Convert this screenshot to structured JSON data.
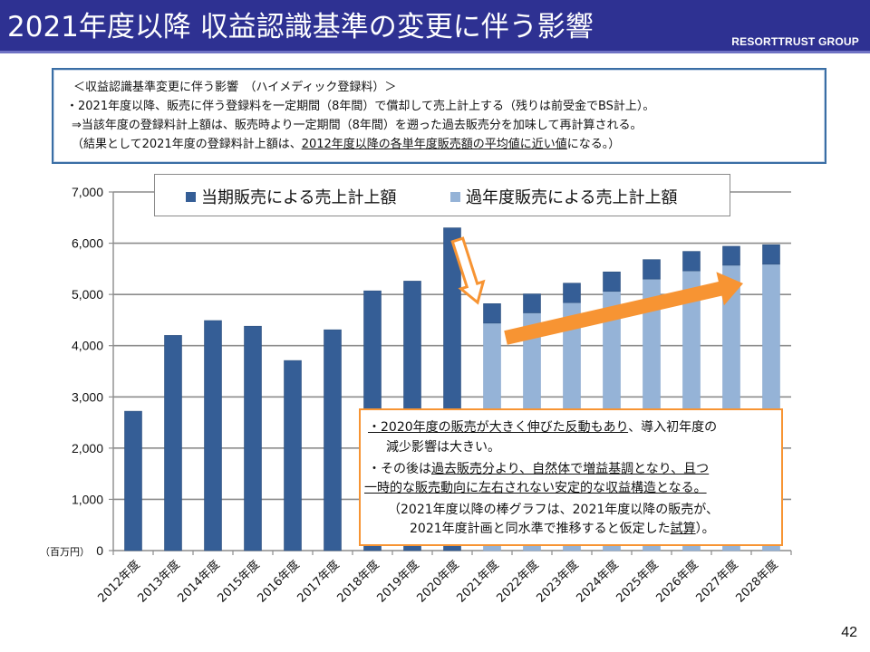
{
  "header": {
    "title": "2021年度以降 収益認識基準の変更に伴う影響",
    "brand": "RESORTTRUST GROUP"
  },
  "info_box": {
    "line1": "＜収益認識基準変更に伴う影響　（ハイメディック登録料）＞",
    "line2": "・2021年度以降、販売に伴う登録料を一定期間（8年間）で償却して売上計上する（残りは前受金でBS計上）。",
    "line3": "⇒当該年度の登録料計上額は、販売時より一定期間（8年間）を遡った過去販売分を加味して再計算される。",
    "line4_prefix": "（結果として2021年度の登録料計上額は、",
    "line4_underlined": "2012年度以降の各単年度販売額の平均値に近い値",
    "line4_suffix": "になる。）"
  },
  "callout": {
    "line1_underlined": "・2020年度の販売が大きく伸びた反動もあり",
    "line1_rest": "、導入初年度の",
    "line2": "減少影響は大きい。",
    "line3_prefix": "・その後は",
    "line3_underlined": "過去販売分より、自然体で増益基調となり、且つ",
    "line4_underlined": "一時的な販売動向に左右されない安定的な収益構造となる。",
    "line5": "（2021年度以降の棒グラフは、2021年度以降の販売が、",
    "line6_prefix": "2021年度計画と同水準で推移すると仮定した",
    "line6_underlined": "試算",
    "line6_suffix": "）。"
  },
  "page_number": "42",
  "colors": {
    "header_bg": "#2e3192",
    "current_sales": "#355e96",
    "past_sales": "#95b3d7",
    "accent_orange": "#f79433",
    "info_border": "#3a6ea5"
  },
  "chart_data": {
    "type": "bar",
    "stacked": true,
    "title": "",
    "ylabel": "（百万円）",
    "xlabel": "",
    "ylim": [
      0,
      7000
    ],
    "yticks": [
      0,
      1000,
      2000,
      3000,
      4000,
      5000,
      6000,
      7000
    ],
    "ytick_labels": [
      "0",
      "1,000",
      "2,000",
      "3,000",
      "4,000",
      "5,000",
      "6,000",
      "7,000"
    ],
    "grid": true,
    "legend_position": "top",
    "categories": [
      "2012年度",
      "2013年度",
      "2014年度",
      "2015年度",
      "2016年度",
      "2017年度",
      "2018年度",
      "2019年度",
      "2020年度",
      "2021年度",
      "2022年度",
      "2023年度",
      "2024年度",
      "2025年度",
      "2026年度",
      "2027年度",
      "2028年度"
    ],
    "series": [
      {
        "name": "過年度販売による売上計上額",
        "color": "#95b3d7",
        "values": [
          0,
          0,
          0,
          0,
          0,
          0,
          0,
          0,
          0,
          4440,
          4640,
          4840,
          5060,
          5300,
          5460,
          5570,
          5590
        ]
      },
      {
        "name": "当期販売による売上計上額",
        "color": "#355e96",
        "values": [
          2720,
          4200,
          4490,
          4380,
          3710,
          4310,
          5070,
          5260,
          6300,
          380,
          370,
          380,
          380,
          380,
          380,
          370,
          380
        ]
      }
    ],
    "legend_order": [
      "当期販売による売上計上額",
      "過年度販売による売上計上額"
    ],
    "annotations": [
      {
        "type": "hollow-arrow-down",
        "from_category": "2020年度",
        "to_category": "2021年度"
      },
      {
        "type": "trend-arrow-up",
        "from_category": "2021年度",
        "to_category": "2027年度"
      }
    ]
  }
}
